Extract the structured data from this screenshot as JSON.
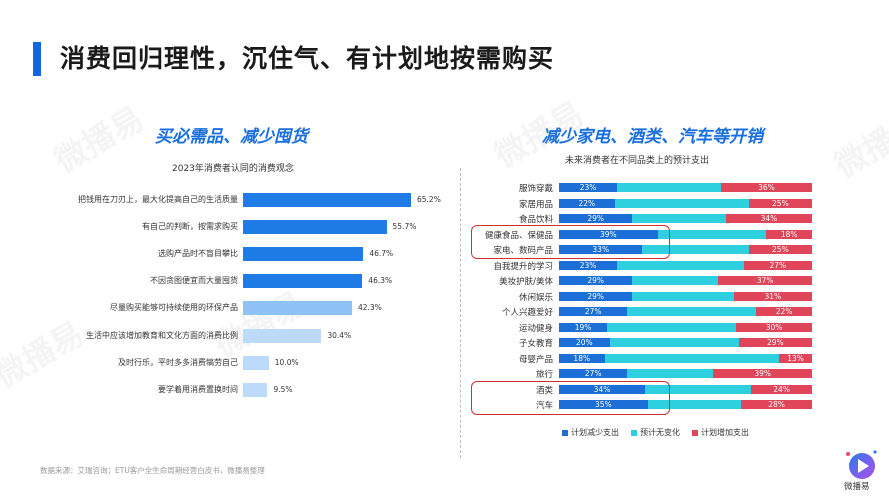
{
  "header": {
    "title": "消费回归理性，沉住气、有计划地按需购买",
    "accent_color": "#1565e0"
  },
  "watermark_text": "微播易",
  "left": {
    "section_title": "买必需品、减少囤货",
    "chart_title": "2023年消费者认同的消费观念"
  },
  "right": {
    "section_title": "减少家电、酒类、汽车等开销",
    "chart_title": "未来消费者在不同品类上的预计支出"
  },
  "chart_data": [
    {
      "type": "bar",
      "orientation": "horizontal",
      "title": "2023年消费者认同的消费观念",
      "categories": [
        "把钱用在刀刃上，最大化提高自己的生活质量",
        "有自己的判断，按需求购买",
        "选购产品时不盲目攀比",
        "不因贪图便宜而大量囤货",
        "尽量购买能够可持续使用的环保产品",
        "生活中应该增加教育和文化方面的消费比例",
        "及时行乐，平时多多消费犒劳自己",
        "要学着用消费置换时间"
      ],
      "values": [
        65.2,
        55.7,
        46.7,
        46.3,
        42.3,
        30.4,
        10.0,
        9.5
      ],
      "value_labels": [
        "65.2%",
        "55.7%",
        "46.7%",
        "46.3%",
        "42.3%",
        "30.4%",
        "10.0%",
        "9.5%"
      ],
      "colors": [
        "#1f7be5",
        "#1f7be5",
        "#1f7be5",
        "#1f7be5",
        "#8fc2f5",
        "#bcdaf9",
        "#bcdaf9",
        "#bcdaf9"
      ]
    },
    {
      "type": "bar",
      "orientation": "horizontal",
      "stacked": "percent",
      "title": "未来消费者在不同品类上的预计支出",
      "categories": [
        "服饰穿戴",
        "家居用品",
        "食品饮料",
        "健康食品、保健品",
        "家电、数码产品",
        "自我提升的学习",
        "美妆护肤/美体",
        "休闲娱乐",
        "个人兴趣爱好",
        "运动健身",
        "子女教育",
        "母婴产品",
        "旅行",
        "酒类",
        "汽车"
      ],
      "series": [
        {
          "name": "计划减少支出",
          "color": "#1c6fd6",
          "values": [
            23,
            22,
            29,
            39,
            33,
            23,
            29,
            29,
            27,
            19,
            20,
            18,
            27,
            34,
            35
          ]
        },
        {
          "name": "预计无变化",
          "color": "#2ed0df",
          "values": [
            41,
            53,
            37,
            43,
            42,
            50,
            34,
            40,
            51,
            51,
            51,
            69,
            34,
            42,
            37
          ]
        },
        {
          "name": "计划增加支出",
          "color": "#e0455a",
          "values": [
            36,
            25,
            34,
            18,
            25,
            27,
            37,
            31,
            22,
            30,
            29,
            13,
            39,
            24,
            28
          ]
        }
      ],
      "shown_labels": {
        "reduce": [
          "23%",
          "22%",
          "29%",
          "39%",
          "33%",
          "23%",
          "29%",
          "29%",
          "27%",
          "19%",
          "20%",
          "18%",
          "27%",
          "34%",
          "35%"
        ],
        "increase": [
          "36%",
          "25%",
          "34%",
          "18%",
          "25%",
          "27%",
          "37%",
          "31%",
          "22%",
          "30%",
          "29%",
          "13%",
          "39%",
          "24%",
          "28%"
        ]
      },
      "highlighted_groups": [
        [
          "健康食品、保健品",
          "家电、数码产品"
        ],
        [
          "酒类",
          "汽车"
        ]
      ],
      "legend": [
        "计划减少支出",
        "预计无变化",
        "计划增加支出"
      ]
    }
  ],
  "footer": {
    "source": "数据来源：艾瑞咨询；ETU客户全生命周期经营白皮书，微播易整理",
    "logo_text": "微播易"
  }
}
